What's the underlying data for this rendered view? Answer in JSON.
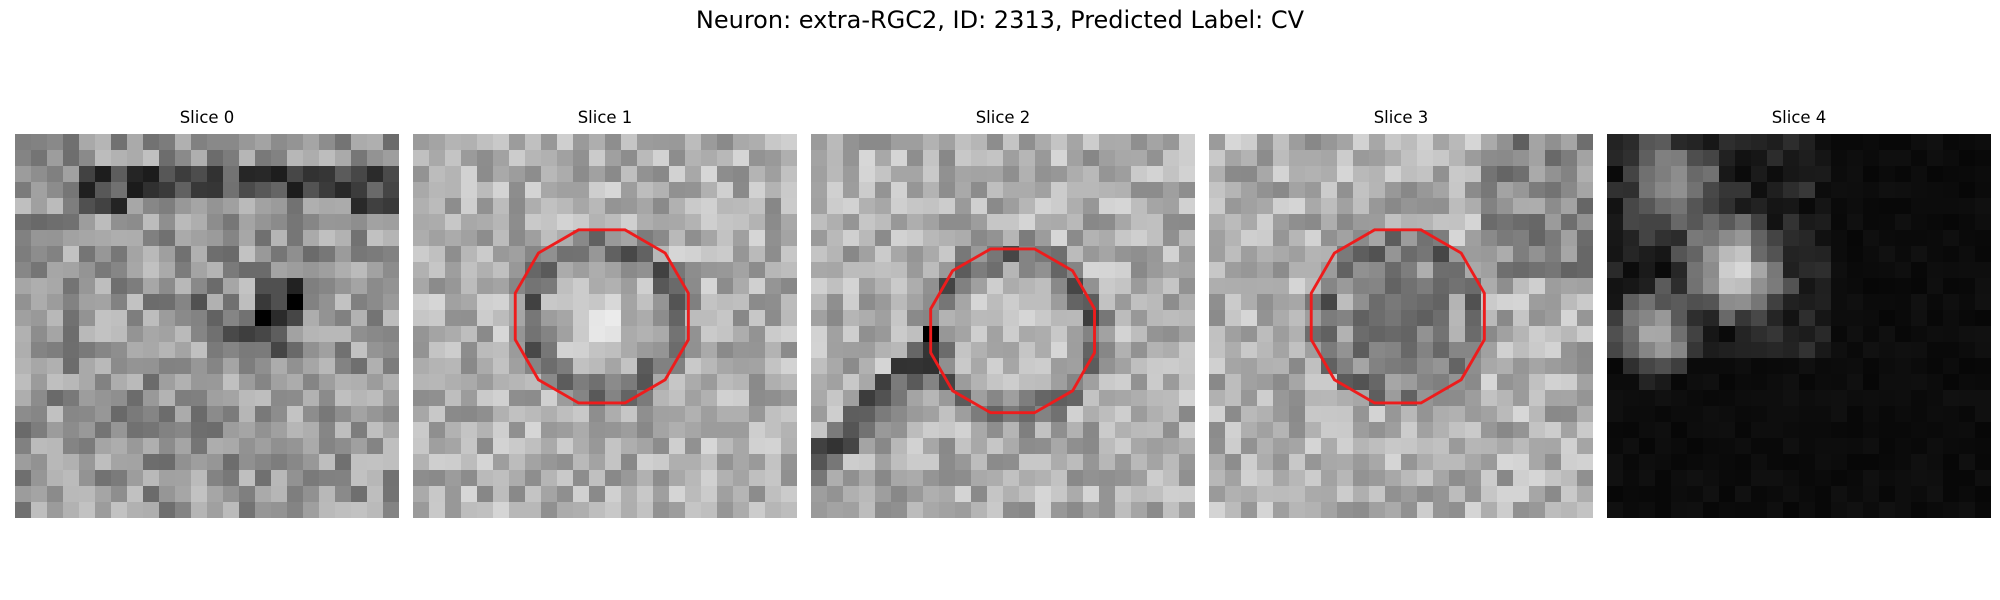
{
  "figure": {
    "title": "Neuron: extra-RGC2, ID: 2313, Predicted Label: CV"
  },
  "panels": [
    {
      "title": "Slice 0",
      "has_contour": false,
      "tone": "mid-gray"
    },
    {
      "title": "Slice 1",
      "has_contour": true,
      "tone": "light-gray"
    },
    {
      "title": "Slice 2",
      "has_contour": true,
      "tone": "light-gray"
    },
    {
      "title": "Slice 3",
      "has_contour": true,
      "tone": "light-gray"
    },
    {
      "title": "Slice 4",
      "has_contour": false,
      "tone": "dark"
    }
  ],
  "colors": {
    "contour": "#ee1c1c",
    "background": "#ffffff"
  }
}
